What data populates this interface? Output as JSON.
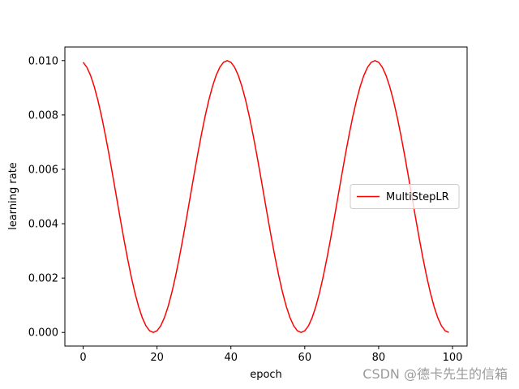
{
  "chart_data": {
    "type": "line",
    "xlabel": "epoch",
    "ylabel": "learning rate",
    "x": [
      0,
      1,
      2,
      3,
      4,
      5,
      6,
      7,
      8,
      9,
      10,
      11,
      12,
      13,
      14,
      15,
      16,
      17,
      18,
      19,
      20,
      21,
      22,
      23,
      24,
      25,
      26,
      27,
      28,
      29,
      30,
      31,
      32,
      33,
      34,
      35,
      36,
      37,
      38,
      39,
      40,
      41,
      42,
      43,
      44,
      45,
      46,
      47,
      48,
      49,
      50,
      51,
      52,
      53,
      54,
      55,
      56,
      57,
      58,
      59,
      60,
      61,
      62,
      63,
      64,
      65,
      66,
      67,
      68,
      69,
      70,
      71,
      72,
      73,
      74,
      75,
      76,
      77,
      78,
      79,
      80,
      81,
      82,
      83,
      84,
      85,
      86,
      87,
      88,
      89,
      90,
      91,
      92,
      93,
      94,
      95,
      96,
      97,
      98,
      99
    ],
    "series": [
      {
        "name": "MultiStepLR",
        "color": "#ff0000",
        "values": [
          0.009938,
          0.009755,
          0.009455,
          0.009045,
          0.008536,
          0.007939,
          0.00727,
          0.006545,
          0.005782,
          0.005,
          0.004218,
          0.003455,
          0.00273,
          0.002061,
          0.001464,
          0.000955,
          0.000545,
          0.000245,
          6.2e-05,
          0,
          6.2e-05,
          0.000245,
          0.000545,
          0.000955,
          0.001464,
          0.002061,
          0.00273,
          0.003455,
          0.004218,
          0.005,
          0.005782,
          0.006545,
          0.00727,
          0.007939,
          0.008536,
          0.009045,
          0.009455,
          0.009755,
          0.009938,
          0.01,
          0.009938,
          0.009755,
          0.009455,
          0.009045,
          0.008536,
          0.007939,
          0.00727,
          0.006545,
          0.005782,
          0.005,
          0.004218,
          0.003455,
          0.00273,
          0.002061,
          0.001464,
          0.000955,
          0.000545,
          0.000245,
          6.2e-05,
          0,
          6.2e-05,
          0.000245,
          0.000545,
          0.000955,
          0.001464,
          0.002061,
          0.00273,
          0.003455,
          0.004218,
          0.005,
          0.005782,
          0.006545,
          0.00727,
          0.007939,
          0.008536,
          0.009045,
          0.009455,
          0.009755,
          0.009938,
          0.01,
          0.009938,
          0.009755,
          0.009455,
          0.009045,
          0.008536,
          0.007939,
          0.00727,
          0.006545,
          0.005782,
          0.005,
          0.004218,
          0.003455,
          0.00273,
          0.002061,
          0.001464,
          0.000955,
          0.000545,
          0.000245,
          6.2e-05,
          0
        ]
      }
    ],
    "xlim": [
      -4.95,
      103.95
    ],
    "xticks": [
      0,
      20,
      40,
      60,
      80,
      100
    ],
    "ylim": [
      -0.0005,
      0.0105
    ],
    "yticks": [
      {
        "value": 0,
        "label": "0.000"
      },
      {
        "value": 0.002,
        "label": "0.002"
      },
      {
        "value": 0.004,
        "label": "0.004"
      },
      {
        "value": 0.006,
        "label": "0.006"
      },
      {
        "value": 0.008,
        "label": "0.008"
      },
      {
        "value": 0.01,
        "label": "0.010"
      }
    ],
    "legend": "center right",
    "watermark": "CSDN @德卡先生的信箱"
  }
}
